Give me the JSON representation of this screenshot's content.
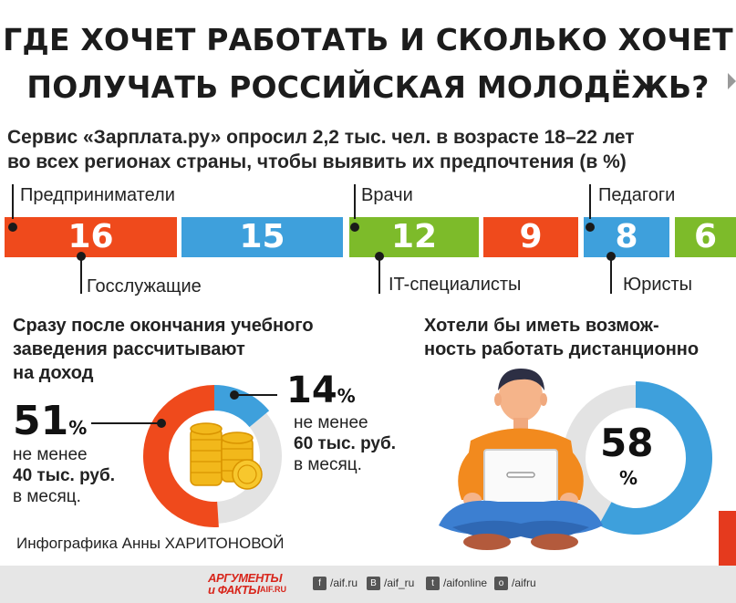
{
  "header": {
    "title_line1": "ГДЕ ХОЧЕТ РАБОТАТЬ И СКОЛЬКО ХОЧЕТ",
    "title_line2": "ПОЛУЧАТЬ РОССИЙСКАЯ МОЛОДЁЖЬ?",
    "subtitle_line1": "Сервис «Зарплата.ру» опросил 2,2 тыс. чел. в возрасте 18–22 лет",
    "subtitle_line2": "во всех регионах страны, чтобы выявить их предпочтения (в %)"
  },
  "colors": {
    "orange": "#ef4a1c",
    "blue": "#3ea0dc",
    "green": "#7dbb2a",
    "grey": "#e3e3e3",
    "coin": "#f2b81b"
  },
  "professions": [
    {
      "label": "Предприниматели",
      "value": "16",
      "color": "#ef4a1c"
    },
    {
      "label": "Госслужащие",
      "value": "15",
      "color": "#3ea0dc"
    },
    {
      "label": "Врачи",
      "value": "12",
      "color": "#7dbb2a"
    },
    {
      "label": "IT-специалисты",
      "value": "9",
      "color": "#ef4a1c"
    },
    {
      "label": "Педагоги",
      "value": "8",
      "color": "#3ea0dc"
    },
    {
      "label": "Юристы",
      "value": "6",
      "color": "#7dbb2a"
    }
  ],
  "income": {
    "heading_line1": "Сразу после окончания учебного",
    "heading_line2": "заведения рассчитывают",
    "heading_line3": "на доход",
    "left_value": "51",
    "left_pct": "%",
    "left_text1": "не менее",
    "left_text2": "40 тыс. руб.",
    "left_text3": "в месяц.",
    "right_value": "14",
    "right_pct": "%",
    "right_text1": "не менее",
    "right_text2": "60 тыс. руб.",
    "right_text3": "в месяц.",
    "donut_share_orange": 51,
    "donut_share_blue": 14
  },
  "remote": {
    "heading_line1": "Хотели бы иметь возмож-",
    "heading_line2": "ность работать дистанционно",
    "value": "58",
    "pct": "%",
    "donut_share": 58
  },
  "credit": "Инфографика Анны ХАРИТОНОВОЙ",
  "footer": {
    "brand_line1": "АРГУМЕНТЫ",
    "brand_line2": "и ФАКТЫ",
    "brand_line3": "AIF.RU",
    "socials": [
      {
        "icon": "facebook-icon",
        "glyph": "f",
        "text": "/aif.ru"
      },
      {
        "icon": "vk-icon",
        "glyph": "B",
        "text": "/aif_ru"
      },
      {
        "icon": "twitter-icon",
        "glyph": "t",
        "text": "/aifonline"
      },
      {
        "icon": "ok-icon",
        "glyph": "o",
        "text": "/aifru"
      }
    ]
  }
}
